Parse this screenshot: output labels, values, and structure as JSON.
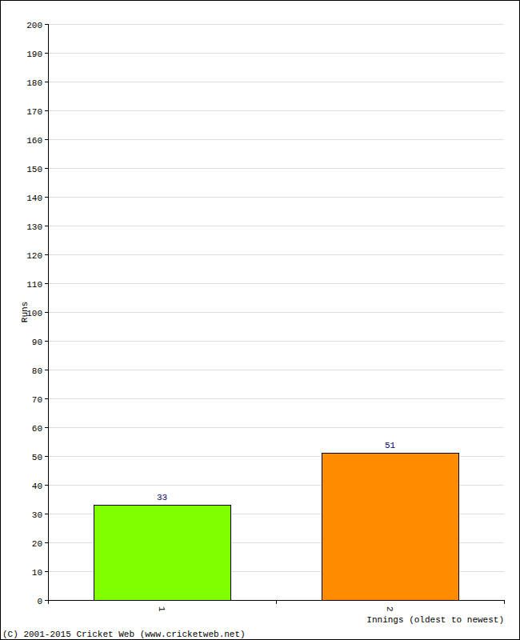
{
  "chart_data": {
    "type": "bar",
    "categories": [
      "1",
      "2"
    ],
    "values": [
      33,
      51
    ],
    "colors": [
      "#80ff00",
      "#ff8c00"
    ],
    "x_label": "Innings (oldest to newest)",
    "y_label": "Runs",
    "annotations": [
      "(C) 2001-2015 Cricket Web (www.cricketweb.net)"
    ],
    "ylim": [
      0,
      200
    ],
    "yticks": [
      0,
      10,
      20,
      30,
      40,
      50,
      60,
      70,
      80,
      90,
      100,
      110,
      120,
      130,
      140,
      150,
      160,
      170,
      180,
      190,
      200
    ],
    "grid": true,
    "data_labels": true
  }
}
